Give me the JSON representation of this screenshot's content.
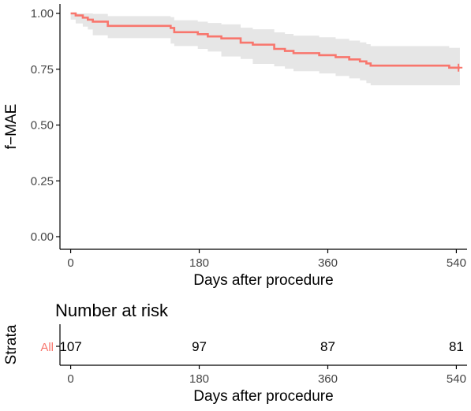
{
  "chart_data": [
    {
      "type": "line",
      "subtype": "kaplan-meier",
      "title": "",
      "xlabel": "Days after procedure",
      "ylabel": "f−MAE",
      "xlim": [
        -15,
        555
      ],
      "ylim": [
        0,
        1
      ],
      "x_ticks": [
        0,
        180,
        360,
        540
      ],
      "x_tick_labels": [
        "0",
        "180",
        "360",
        "540"
      ],
      "y_ticks": [
        0,
        0.25,
        0.5,
        0.75,
        1
      ],
      "y_tick_labels": [
        "0.00",
        "0.25",
        "0.50",
        "0.75",
        "1.00"
      ],
      "grid": false,
      "legend": "none",
      "series": [
        {
          "color": "#f8766d",
          "ci_color": "#e6e6e6",
          "steps": [
            {
              "x": 0,
              "y": 1.0,
              "lower": 1.0,
              "upper": 1.0
            },
            {
              "x": 7,
              "y": 0.991,
              "lower": 0.972,
              "upper": 1.0
            },
            {
              "x": 17,
              "y": 0.981,
              "lower": 0.955,
              "upper": 1.0
            },
            {
              "x": 24,
              "y": 0.972,
              "lower": 0.941,
              "upper": 1.0
            },
            {
              "x": 31,
              "y": 0.963,
              "lower": 0.928,
              "upper": 0.998
            },
            {
              "x": 52,
              "y": 0.944,
              "lower": 0.902,
              "upper": 0.988
            },
            {
              "x": 140,
              "y": 0.935,
              "lower": 0.889,
              "upper": 0.983
            },
            {
              "x": 145,
              "y": 0.916,
              "lower": 0.865,
              "upper": 0.969
            },
            {
              "x": 178,
              "y": 0.907,
              "lower": 0.854,
              "upper": 0.963
            },
            {
              "x": 192,
              "y": 0.897,
              "lower": 0.841,
              "upper": 0.957
            },
            {
              "x": 211,
              "y": 0.888,
              "lower": 0.829,
              "upper": 0.951
            },
            {
              "x": 238,
              "y": 0.869,
              "lower": 0.807,
              "upper": 0.936
            },
            {
              "x": 255,
              "y": 0.86,
              "lower": 0.796,
              "upper": 0.929
            },
            {
              "x": 285,
              "y": 0.841,
              "lower": 0.774,
              "upper": 0.915
            },
            {
              "x": 300,
              "y": 0.832,
              "lower": 0.763,
              "upper": 0.908
            },
            {
              "x": 312,
              "y": 0.822,
              "lower": 0.752,
              "upper": 0.9
            },
            {
              "x": 348,
              "y": 0.813,
              "lower": 0.741,
              "upper": 0.893
            },
            {
              "x": 371,
              "y": 0.804,
              "lower": 0.731,
              "upper": 0.886
            },
            {
              "x": 390,
              "y": 0.794,
              "lower": 0.72,
              "upper": 0.878
            },
            {
              "x": 405,
              "y": 0.785,
              "lower": 0.709,
              "upper": 0.87
            },
            {
              "x": 414,
              "y": 0.776,
              "lower": 0.7,
              "upper": 0.862
            },
            {
              "x": 420,
              "y": 0.766,
              "lower": 0.688,
              "upper": 0.854
            },
            {
              "x": 530,
              "y": 0.757,
              "lower": 0.678,
              "upper": 0.846
            },
            {
              "x": 545,
              "y": 0.757,
              "lower": 0.678,
              "upper": 0.846
            }
          ],
          "censor": [
            {
              "x": 543,
              "y": 0.757
            }
          ]
        }
      ]
    },
    {
      "type": "table",
      "title": "Number at risk",
      "xlabel": "Days after procedure",
      "ylabel": "Strata",
      "x_ticks": [
        0,
        180,
        360,
        540
      ],
      "x_tick_labels": [
        "0",
        "180",
        "360",
        "540"
      ],
      "rows": [
        {
          "label": "All",
          "color": "#f8766d",
          "values": [
            107,
            97,
            87,
            81
          ]
        }
      ]
    }
  ]
}
